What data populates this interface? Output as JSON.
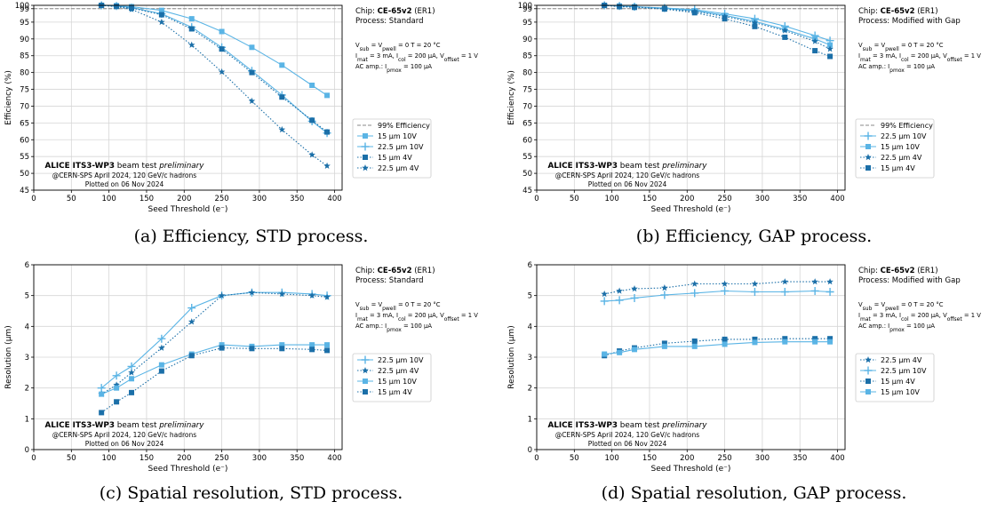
{
  "captions": [
    "(a) Efficiency, STD process.",
    "(b) Efficiency, GAP process.",
    "(c) Spatial resolution, STD process.",
    "(d) Spatial resolution, GAP process."
  ],
  "chart_data": [
    {
      "type": "line",
      "xlabel": "Seed Threshold (e⁻)",
      "ylabel": "Efficiency (%)",
      "xlim": [
        0,
        410
      ],
      "ylim": [
        45,
        100
      ],
      "xticks": [
        0,
        50,
        100,
        150,
        200,
        250,
        300,
        350,
        400
      ],
      "yticks": [
        45,
        50,
        55,
        60,
        65,
        70,
        75,
        80,
        85,
        90,
        95,
        99,
        100
      ],
      "grid": true,
      "reference_line": {
        "label": "99% Efficiency",
        "y": 99
      },
      "legend_position": "right",
      "info": {
        "chip_prefix": "Chip: ",
        "chip": "CE-65v2",
        "chip_suffix": " (ER1)",
        "process": "Process: Standard",
        "cond1": "V_sub = V_pwell = 0      T = 20 °C",
        "cond2": "I_mat = 3 mA, I_col = 200 μA, V_offset = 1 V",
        "cond3": "AC amp.: I_pmox = 100 μA"
      },
      "watermark": {
        "bold": "ALICE ITS3-WP3",
        "rest": " beam test ",
        "italic": "preliminary",
        "line2": "@CERN-SPS April 2024, 120 GeV/c hadrons",
        "line3": "Plotted on 06 Nov 2024"
      },
      "series": [
        {
          "name": "15 μm 10V",
          "color": "#5ab4e5",
          "marker": "square",
          "dash": "solid",
          "x": [
            90,
            110,
            130,
            170,
            210,
            250,
            290,
            330,
            370,
            390
          ],
          "y": [
            100,
            99.9,
            99.6,
            98.5,
            96,
            92.2,
            87.5,
            82.2,
            76.2,
            73.2
          ]
        },
        {
          "name": "22.5 μm 10V",
          "color": "#5ab4e5",
          "marker": "plus",
          "dash": "solid",
          "x": [
            90,
            110,
            130,
            170,
            210,
            250,
            290,
            330,
            370,
            390
          ],
          "y": [
            100,
            99.8,
            99.3,
            97.5,
            93.5,
            87.5,
            80.5,
            73.3,
            65.5,
            62
          ]
        },
        {
          "name": "15 μm 4V",
          "color": "#1b6fa8",
          "marker": "square",
          "dash": "dotted",
          "x": [
            90,
            110,
            130,
            170,
            210,
            250,
            290,
            330,
            370,
            390
          ],
          "y": [
            100,
            99.7,
            99.2,
            97.2,
            93,
            87,
            80,
            72.7,
            65.8,
            62.3
          ]
        },
        {
          "name": "22.5 μm 4V",
          "color": "#1b6fa8",
          "marker": "star",
          "dash": "dotted",
          "x": [
            90,
            110,
            130,
            170,
            210,
            250,
            290,
            330,
            370,
            390
          ],
          "y": [
            100,
            99.6,
            98.8,
            95,
            88.2,
            80.2,
            71.5,
            63,
            55.5,
            52.2
          ]
        }
      ]
    },
    {
      "type": "line",
      "xlabel": "Seed Threshold (e⁻)",
      "ylabel": "Efficiency (%)",
      "xlim": [
        0,
        410
      ],
      "ylim": [
        45,
        100
      ],
      "xticks": [
        0,
        50,
        100,
        150,
        200,
        250,
        300,
        350,
        400
      ],
      "yticks": [
        45,
        50,
        55,
        60,
        65,
        70,
        75,
        80,
        85,
        90,
        95,
        99,
        100
      ],
      "grid": true,
      "reference_line": {
        "label": "99% Efficiency",
        "y": 99
      },
      "legend_position": "right",
      "info": {
        "chip_prefix": "Chip: ",
        "chip": "CE-65v2",
        "chip_suffix": " (ER1)",
        "process": "Process: Modified with Gap",
        "cond1": "V_sub = V_pwell = 0      T = 20 °C",
        "cond2": "I_mat = 3 mA, I_col = 200 μA, V_offset = 1 V",
        "cond3": "AC amp.: I_pmox = 100 μA"
      },
      "watermark": {
        "bold": "ALICE ITS3-WP3",
        "rest": " beam test ",
        "italic": "preliminary",
        "line2": "@CERN-SPS April 2024, 120 GeV/c hadrons",
        "line3": "Plotted on 06 Nov 2024"
      },
      "series": [
        {
          "name": "22.5 μm 10V",
          "color": "#5ab4e5",
          "marker": "plus",
          "dash": "solid",
          "x": [
            90,
            110,
            130,
            170,
            210,
            250,
            290,
            330,
            370,
            390
          ],
          "y": [
            100,
            99.8,
            99.6,
            99.2,
            98.7,
            97.5,
            96,
            93.8,
            91,
            89.5
          ]
        },
        {
          "name": "15 μm 10V",
          "color": "#5ab4e5",
          "marker": "square",
          "dash": "solid",
          "x": [
            90,
            110,
            130,
            170,
            210,
            250,
            290,
            330,
            370,
            390
          ],
          "y": [
            100,
            99.8,
            99.6,
            99.1,
            98.4,
            97,
            95.2,
            92.8,
            90,
            88.2
          ]
        },
        {
          "name": "22.5 μm 4V",
          "color": "#1b6fa8",
          "marker": "star",
          "dash": "dotted",
          "x": [
            90,
            110,
            130,
            170,
            210,
            250,
            290,
            330,
            370,
            390
          ],
          "y": [
            100,
            99.7,
            99.5,
            99,
            98.2,
            96.7,
            94.8,
            92.5,
            89.3,
            87
          ]
        },
        {
          "name": "15 μm 4V",
          "color": "#1b6fa8",
          "marker": "square",
          "dash": "dotted",
          "x": [
            90,
            110,
            130,
            170,
            210,
            250,
            290,
            330,
            370,
            390
          ],
          "y": [
            100,
            99.6,
            99.4,
            98.9,
            97.8,
            96,
            93.7,
            90.5,
            86.5,
            84.8
          ]
        }
      ]
    },
    {
      "type": "line",
      "xlabel": "Seed Threshold (e⁻)",
      "ylabel": "Resolution (μm)",
      "xlim": [
        0,
        410
      ],
      "ylim": [
        0,
        6
      ],
      "xticks": [
        0,
        50,
        100,
        150,
        200,
        250,
        300,
        350,
        400
      ],
      "yticks": [
        0,
        1,
        2,
        3,
        4,
        5,
        6
      ],
      "grid": true,
      "legend_position": "right",
      "info": {
        "chip_prefix": "Chip: ",
        "chip": "CE-65v2",
        "chip_suffix": " (ER1)",
        "process": "Process: Standard",
        "cond1": "V_sub = V_pwell = 0      T = 20 °C",
        "cond2": "I_mat = 3 mA, I_col = 200 μA, V_offset = 1 V",
        "cond3": "AC amp.: I_pmox = 100 μA"
      },
      "watermark": {
        "bold": "ALICE ITS3-WP3",
        "rest": " beam test ",
        "italic": "preliminary",
        "line2": "@CERN-SPS April 2024, 120 GeV/c hadrons",
        "line3": "Plotted on 06 Nov 2024"
      },
      "series": [
        {
          "name": "22.5 μm 10V",
          "color": "#5ab4e5",
          "marker": "plus",
          "dash": "solid",
          "x": [
            90,
            110,
            130,
            170,
            210,
            250,
            290,
            330,
            370,
            390
          ],
          "y": [
            2.0,
            2.4,
            2.7,
            3.6,
            4.6,
            5.0,
            5.1,
            5.1,
            5.05,
            5.0
          ]
        },
        {
          "name": "22.5 μm 4V",
          "color": "#1b6fa8",
          "marker": "star",
          "dash": "dotted",
          "x": [
            90,
            110,
            130,
            170,
            210,
            250,
            290,
            330,
            370,
            390
          ],
          "y": [
            1.8,
            2.1,
            2.5,
            3.3,
            4.15,
            5.0,
            5.1,
            5.05,
            5.0,
            4.95
          ]
        },
        {
          "name": "15 μm 10V",
          "color": "#5ab4e5",
          "marker": "square",
          "dash": "solid",
          "x": [
            90,
            110,
            130,
            170,
            210,
            250,
            290,
            330,
            370,
            390
          ],
          "y": [
            1.8,
            2.0,
            2.3,
            2.75,
            3.1,
            3.4,
            3.35,
            3.4,
            3.4,
            3.4
          ]
        },
        {
          "name": "15 μm 4V",
          "color": "#1b6fa8",
          "marker": "square",
          "dash": "dotted",
          "x": [
            90,
            110,
            130,
            170,
            210,
            250,
            290,
            330,
            370,
            390
          ],
          "y": [
            1.2,
            1.55,
            1.85,
            2.55,
            3.05,
            3.3,
            3.28,
            3.28,
            3.25,
            3.22
          ]
        }
      ]
    },
    {
      "type": "line",
      "xlabel": "Seed Threshold (e⁻)",
      "ylabel": "Resolution (μm)",
      "xlim": [
        0,
        410
      ],
      "ylim": [
        0,
        6
      ],
      "xticks": [
        0,
        50,
        100,
        150,
        200,
        250,
        300,
        350,
        400
      ],
      "yticks": [
        0,
        1,
        2,
        3,
        4,
        5,
        6
      ],
      "grid": true,
      "legend_position": "right",
      "info": {
        "chip_prefix": "Chip: ",
        "chip": "CE-65v2",
        "chip_suffix": " (ER1)",
        "process": "Process: Modified with Gap",
        "cond1": "V_sub = V_pwell = 0      T = 20 °C",
        "cond2": "I_mat = 3 mA, I_col = 200 μA, V_offset = 1 V",
        "cond3": "AC amp.: I_pmox = 100 μA"
      },
      "watermark": {
        "bold": "ALICE ITS3-WP3",
        "rest": " beam test ",
        "italic": "preliminary",
        "line2": "@CERN-SPS April 2024, 120 GeV/c hadrons",
        "line3": "Plotted on 06 Nov 2024"
      },
      "series": [
        {
          "name": "22.5 μm 4V",
          "color": "#1b6fa8",
          "marker": "star",
          "dash": "dotted",
          "x": [
            90,
            110,
            130,
            170,
            210,
            250,
            290,
            330,
            370,
            390
          ],
          "y": [
            5.05,
            5.15,
            5.22,
            5.25,
            5.38,
            5.38,
            5.38,
            5.45,
            5.45,
            5.45
          ]
        },
        {
          "name": "22.5 μm 10V",
          "color": "#5ab4e5",
          "marker": "plus",
          "dash": "solid",
          "x": [
            90,
            110,
            130,
            170,
            210,
            250,
            290,
            330,
            370,
            390
          ],
          "y": [
            4.82,
            4.85,
            4.92,
            5.02,
            5.08,
            5.15,
            5.12,
            5.12,
            5.15,
            5.12
          ]
        },
        {
          "name": "15 μm 4V",
          "color": "#1b6fa8",
          "marker": "square",
          "dash": "dotted",
          "x": [
            90,
            110,
            130,
            170,
            210,
            250,
            290,
            330,
            370,
            390
          ],
          "y": [
            3.05,
            3.2,
            3.3,
            3.45,
            3.52,
            3.58,
            3.58,
            3.6,
            3.6,
            3.6
          ]
        },
        {
          "name": "15 μm 10V",
          "color": "#5ab4e5",
          "marker": "square",
          "dash": "solid",
          "x": [
            90,
            110,
            130,
            170,
            210,
            250,
            290,
            330,
            370,
            390
          ],
          "y": [
            3.1,
            3.15,
            3.25,
            3.35,
            3.35,
            3.42,
            3.48,
            3.5,
            3.5,
            3.5
          ]
        }
      ]
    }
  ]
}
